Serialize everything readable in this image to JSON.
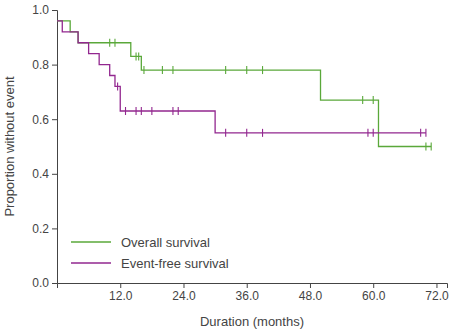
{
  "chart_data": {
    "type": "line",
    "line_style": "step",
    "x_label": "Duration (months)",
    "y_label": "Proportion without event",
    "xlim": [
      0,
      74
    ],
    "ylim": [
      0,
      1
    ],
    "xticks": [
      {
        "value": 12,
        "label": "12.0"
      },
      {
        "value": 24,
        "label": "24.0"
      },
      {
        "value": 36,
        "label": "36.0"
      },
      {
        "value": 48,
        "label": "48.0"
      },
      {
        "value": 60,
        "label": "60.0"
      },
      {
        "value": 72,
        "label": "72.0"
      }
    ],
    "yticks": [
      {
        "value": 0,
        "label": "0.0"
      },
      {
        "value": 0.2,
        "label": "0.2"
      },
      {
        "value": 0.4,
        "label": "0.4"
      },
      {
        "value": 0.6,
        "label": "0.6"
      },
      {
        "value": 0.8,
        "label": "0.8"
      },
      {
        "value": 1,
        "label": "1.0"
      }
    ],
    "legend": "lower left",
    "series": [
      {
        "name": "Overall survival",
        "color": "#5aa83a",
        "x": [
          0,
          2.5,
          4,
          14,
          16,
          50,
          61,
          71
        ],
        "values": [
          0.96,
          0.92,
          0.88,
          0.83,
          0.78,
          0.67,
          0.5,
          0.5
        ],
        "censor_x": [
          10,
          11,
          15,
          15.5,
          16.5,
          20,
          22,
          32,
          36,
          39,
          58,
          60,
          70,
          71
        ],
        "censor_values": [
          0.88,
          0.88,
          0.83,
          0.83,
          0.78,
          0.78,
          0.78,
          0.78,
          0.78,
          0.78,
          0.67,
          0.67,
          0.5,
          0.5
        ]
      },
      {
        "name": "Event-free survival",
        "color": "#92278f",
        "x": [
          0,
          1,
          4,
          6,
          8,
          10,
          11,
          12,
          30,
          70
        ],
        "values": [
          0.96,
          0.92,
          0.88,
          0.84,
          0.8,
          0.76,
          0.72,
          0.63,
          0.55,
          0.55
        ],
        "censor_x": [
          11.5,
          13,
          15,
          16,
          18,
          22,
          23,
          32,
          36,
          39,
          59,
          60,
          69,
          70
        ],
        "censor_values": [
          0.72,
          0.63,
          0.63,
          0.63,
          0.63,
          0.63,
          0.63,
          0.55,
          0.55,
          0.55,
          0.55,
          0.55,
          0.55,
          0.55
        ]
      }
    ]
  }
}
